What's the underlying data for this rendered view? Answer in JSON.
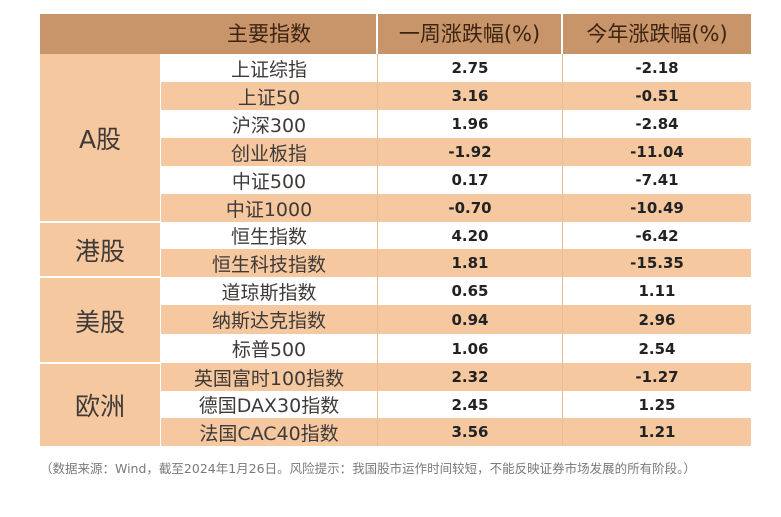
{
  "header": {
    "col_index": "主要指数",
    "col_week": "一周涨跌幅(%)",
    "col_year": "今年涨跌幅(%)"
  },
  "groups": [
    {
      "label": "A股",
      "rows": [
        {
          "name": "上证综指",
          "week": "2.75",
          "ytd": "-2.18"
        },
        {
          "name": "上证50",
          "week": "3.16",
          "ytd": "-0.51"
        },
        {
          "name": "沪深300",
          "week": "1.96",
          "ytd": "-2.84"
        },
        {
          "name": "创业板指",
          "week": "-1.92",
          "ytd": "-11.04"
        },
        {
          "name": "中证500",
          "week": "0.17",
          "ytd": "-7.41"
        },
        {
          "name": "中证1000",
          "week": "-0.70",
          "ytd": "-10.49"
        }
      ]
    },
    {
      "label": "港股",
      "rows": [
        {
          "name": "恒生指数",
          "week": "4.20",
          "ytd": "-6.42"
        },
        {
          "name": "恒生科技指数",
          "week": "1.81",
          "ytd": "-15.35"
        }
      ]
    },
    {
      "label": "美股",
      "rows": [
        {
          "name": "道琼斯指数",
          "week": "0.65",
          "ytd": "1.11"
        },
        {
          "name": "纳斯达克指数",
          "week": "0.94",
          "ytd": "2.96"
        },
        {
          "name": "标普500",
          "week": "1.06",
          "ytd": "2.54"
        }
      ]
    },
    {
      "label": "欧洲",
      "rows": [
        {
          "name": "英国富时100指数",
          "week": "2.32",
          "ytd": "-1.27"
        },
        {
          "name": "德国DAX30指数",
          "week": "2.45",
          "ytd": "1.25"
        },
        {
          "name": "法国CAC40指数",
          "week": "3.56",
          "ytd": "1.21"
        }
      ]
    }
  ],
  "footnote": "（数据来源：Wind，截至2024年1月26日。风险提示：我国股市运作时间较短，不能反映证券市场发展的所有阶段。）"
}
